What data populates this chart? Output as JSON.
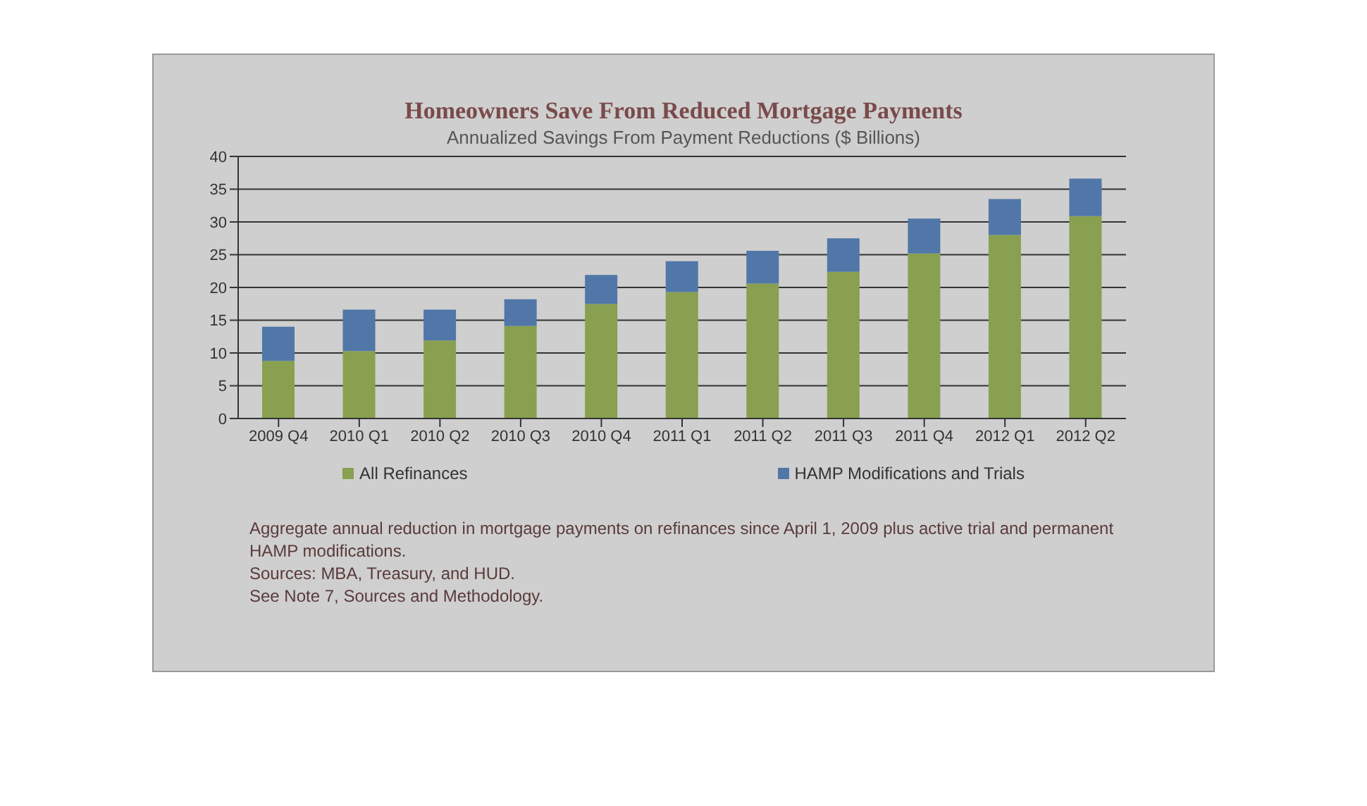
{
  "chart_data": {
    "type": "bar",
    "title": "Homeowners Save From Reduced Mortgage Payments",
    "subtitle": "Annualized Savings From Payment Reductions ($ Billions)",
    "categories": [
      "2009 Q4",
      "2010 Q1",
      "2010 Q2",
      "2010 Q3",
      "2010 Q4",
      "2011 Q1",
      "2011 Q2",
      "2011 Q3",
      "2011 Q4",
      "2012 Q1",
      "2012 Q2"
    ],
    "series": [
      {
        "name": "All Refinances",
        "color": "#88a050",
        "values": [
          8.8,
          10.3,
          11.9,
          14.1,
          17.5,
          19.3,
          20.6,
          22.4,
          25.2,
          28.0,
          30.9
        ]
      },
      {
        "name": "HAMP Modifications and Trials",
        "color": "#5077a8",
        "values": [
          5.2,
          6.3,
          4.7,
          4.1,
          4.4,
          4.7,
          5.0,
          5.1,
          5.3,
          5.5,
          5.7
        ]
      }
    ],
    "stacked": true,
    "ylim": [
      0,
      40
    ],
    "yticks": [
      0,
      5,
      10,
      15,
      20,
      25,
      30,
      35,
      40
    ],
    "grid": "y",
    "legend": "bottom",
    "annotations": [
      "Aggregate annual reduction in mortgage payments on refinances since April 1, 2009 plus active trial and permanent HAMP modifications.",
      "Sources:  MBA, Treasury, and HUD.",
      "See Note 7, Sources and Methodology."
    ]
  }
}
